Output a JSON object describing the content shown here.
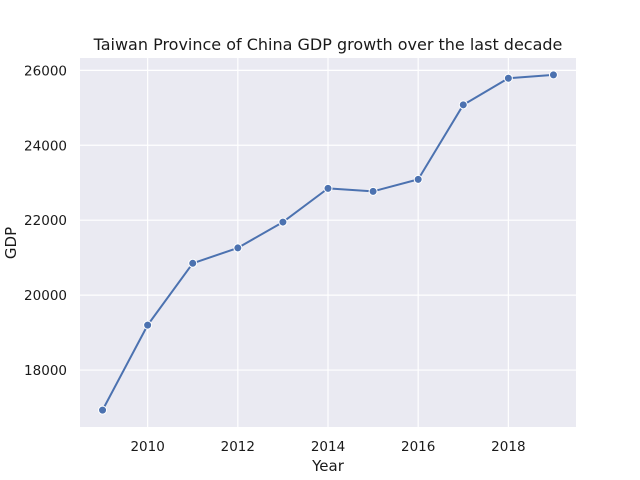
{
  "chart_data": {
    "type": "line",
    "title": "Taiwan Province of China GDP growth over the last decade",
    "xlabel": "Year",
    "ylabel": "GDP",
    "x": [
      2009,
      2010,
      2011,
      2012,
      2013,
      2014,
      2015,
      2016,
      2017,
      2018,
      2019
    ],
    "series": [
      {
        "values": [
          16930,
          19200,
          20850,
          21260,
          21950,
          22850,
          22770,
          23090,
          25080,
          25790,
          25880
        ]
      }
    ],
    "xlim": [
      2008.5,
      2019.5
    ],
    "ylim": [
      16480,
      26330
    ],
    "xticks": [
      2010,
      2012,
      2014,
      2016,
      2018
    ],
    "yticks": [
      18000,
      20000,
      22000,
      24000,
      26000
    ],
    "grid": true,
    "colors": {
      "background": "#eaeaf2",
      "grid": "#ffffff",
      "line": "#4c72b0"
    }
  }
}
